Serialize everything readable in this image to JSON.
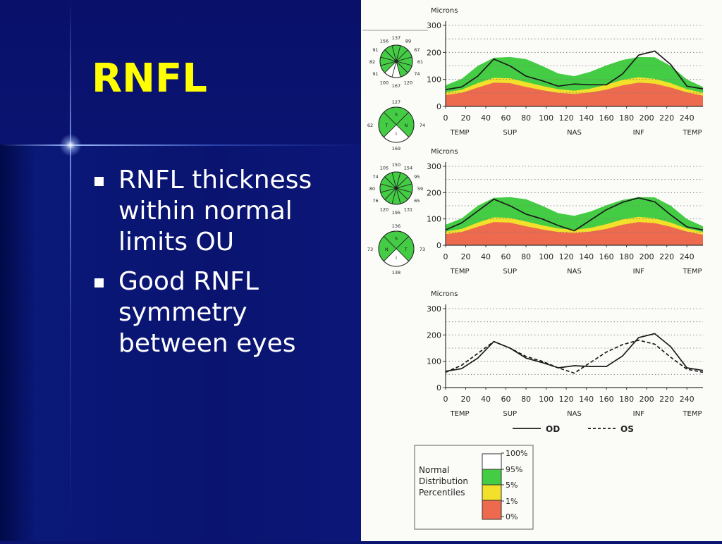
{
  "slide": {
    "title": "RNFL",
    "bullets": [
      "RNFL thickness within normal limits OU",
      "Good RNFL symmetry between eyes"
    ]
  },
  "colors": {
    "slide_background": "#0a1470",
    "title": "#ffff00",
    "text": "#ffffff",
    "band_green": "#44cc44",
    "band_yellow": "#f2e02a",
    "band_red": "#ee6a4e",
    "line": "#1a1a1a"
  },
  "circle_diagrams": [
    {
      "name": "od-clock",
      "labels": [
        "137",
        "89",
        "67",
        "61",
        "74",
        "120",
        "167",
        "100",
        "91",
        "82",
        "91",
        "156"
      ]
    },
    {
      "name": "od-quadrant",
      "labels": [
        "127",
        "74",
        "169",
        "62",
        "S",
        "N",
        "I",
        "T"
      ]
    },
    {
      "name": "os-clock",
      "labels": [
        "150",
        "154",
        "95",
        "59",
        "65",
        "131",
        "195",
        "120",
        "76",
        "80",
        "74",
        "105"
      ]
    },
    {
      "name": "os-quadrant",
      "labels": [
        "136",
        "73",
        "138",
        "73",
        "S",
        "T",
        "I",
        "N"
      ]
    }
  ],
  "legend": {
    "title_lines": [
      "Normal",
      "Distribution",
      "Percentiles"
    ],
    "ticks": [
      "100%",
      "95%",
      "5%",
      "1%",
      "0%"
    ]
  },
  "chart_data": [
    {
      "type": "area",
      "name": "od-tsnit",
      "ylabel": "Microns",
      "ylim": [
        0,
        300
      ],
      "yticks": [
        0,
        100,
        200,
        300
      ],
      "xlim": [
        0,
        256
      ],
      "xticks": [
        0,
        20,
        40,
        60,
        80,
        100,
        120,
        140,
        160,
        180,
        200,
        220,
        240
      ],
      "regions": [
        "TEMP",
        "SUP",
        "NAS",
        "INF",
        "TEMP"
      ],
      "grid": true,
      "x": [
        0,
        16,
        32,
        48,
        64,
        80,
        96,
        112,
        128,
        144,
        160,
        176,
        192,
        208,
        224,
        240,
        256
      ],
      "bands": {
        "p95": [
          78,
          102,
          150,
          180,
          183,
          175,
          150,
          122,
          112,
          128,
          152,
          172,
          183,
          182,
          150,
          100,
          72
        ],
        "p5": [
          52,
          62,
          86,
          106,
          104,
          90,
          76,
          64,
          58,
          66,
          80,
          98,
          108,
          102,
          86,
          64,
          50
        ],
        "p1": [
          42,
          50,
          70,
          88,
          86,
          72,
          60,
          50,
          46,
          52,
          62,
          78,
          88,
          84,
          70,
          52,
          40
        ]
      },
      "series": [
        {
          "name": "OD",
          "values": [
            62,
            72,
            112,
            175,
            150,
            112,
            95,
            75,
            83,
            80,
            80,
            120,
            190,
            205,
            155,
            75,
            65
          ]
        }
      ]
    },
    {
      "type": "area",
      "name": "os-tsnit",
      "ylabel": "Microns",
      "ylim": [
        0,
        300
      ],
      "yticks": [
        0,
        100,
        200,
        300
      ],
      "xlim": [
        0,
        256
      ],
      "xticks": [
        0,
        20,
        40,
        60,
        80,
        100,
        120,
        140,
        160,
        180,
        200,
        220,
        240
      ],
      "regions": [
        "TEMP",
        "SUP",
        "NAS",
        "INF",
        "TEMP"
      ],
      "grid": true,
      "x": [
        0,
        16,
        32,
        48,
        64,
        80,
        96,
        112,
        128,
        144,
        160,
        176,
        192,
        208,
        224,
        240,
        256
      ],
      "bands": {
        "p95": [
          78,
          102,
          150,
          180,
          183,
          175,
          150,
          122,
          112,
          128,
          152,
          172,
          183,
          182,
          150,
          100,
          72
        ],
        "p5": [
          52,
          62,
          86,
          106,
          104,
          90,
          76,
          64,
          58,
          66,
          80,
          98,
          108,
          102,
          86,
          64,
          50
        ],
        "p1": [
          42,
          50,
          70,
          88,
          86,
          72,
          60,
          50,
          46,
          52,
          62,
          78,
          88,
          84,
          70,
          52,
          40
        ]
      },
      "series": [
        {
          "name": "OS",
          "values": [
            58,
            85,
            130,
            175,
            150,
            118,
            100,
            75,
            55,
            95,
            135,
            163,
            180,
            165,
            115,
            70,
            58
          ]
        }
      ]
    },
    {
      "type": "line",
      "name": "od-os-overlay",
      "ylabel": "Microns",
      "ylim": [
        0,
        300
      ],
      "yticks": [
        0,
        100,
        200,
        300
      ],
      "xlim": [
        0,
        256
      ],
      "xticks": [
        0,
        20,
        40,
        60,
        80,
        100,
        120,
        140,
        160,
        180,
        200,
        220,
        240
      ],
      "regions": [
        "TEMP",
        "SUP",
        "NAS",
        "INF",
        "TEMP"
      ],
      "grid": true,
      "legend": "bottom",
      "x": [
        0,
        16,
        32,
        48,
        64,
        80,
        96,
        112,
        128,
        144,
        160,
        176,
        192,
        208,
        224,
        240,
        256
      ],
      "series": [
        {
          "name": "OD",
          "style": "solid",
          "values": [
            62,
            72,
            112,
            175,
            150,
            112,
            95,
            75,
            83,
            80,
            80,
            120,
            190,
            205,
            155,
            75,
            65
          ]
        },
        {
          "name": "OS",
          "style": "dashed",
          "values": [
            58,
            85,
            130,
            175,
            150,
            118,
            100,
            75,
            55,
            95,
            135,
            163,
            180,
            165,
            115,
            70,
            58
          ]
        }
      ]
    }
  ]
}
